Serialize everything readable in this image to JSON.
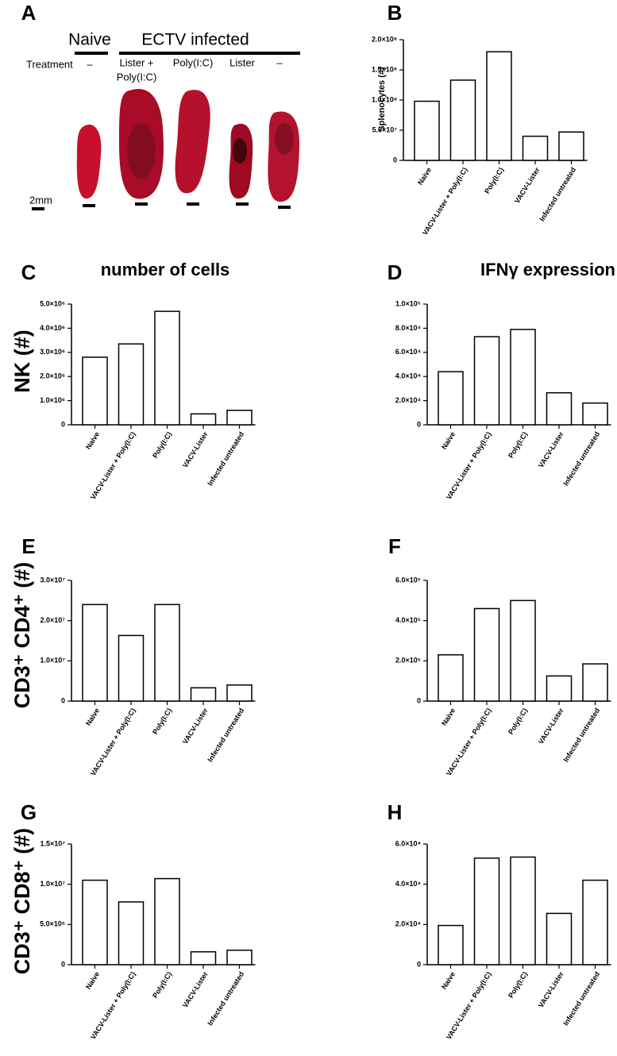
{
  "photo_panel": {
    "panel": "A",
    "groups": [
      "Naive",
      "ECTV infected"
    ],
    "treatment_label": "Treatment",
    "treatments": [
      [
        "–"
      ],
      [
        "Lister +",
        "Poly(I:C)"
      ],
      [
        "Poly(I:C)"
      ],
      [
        "Lister"
      ],
      [
        "–"
      ]
    ],
    "scale_label": "2mm"
  },
  "chart_data": [
    {
      "type": "bar",
      "panel": "B",
      "ylabel": "Splenocytes (#)",
      "categories": [
        "Naive",
        "VACV-Lister + Poly(I:C)",
        "Poly(I:C)",
        "VACV-Lister",
        "Infected untreated"
      ],
      "values": [
        98000000,
        133000000,
        180000000,
        40000000,
        47000000
      ],
      "color": "#ffffff",
      "ylim": [
        0,
        200000000
      ],
      "yticks": [
        0,
        {
          "value": 50000000,
          "label": "5.0×10⁷"
        },
        {
          "value": 100000000,
          "label": "1.0×10⁸"
        },
        {
          "value": 150000000,
          "label": "1.5×10⁸"
        },
        {
          "value": 200000000,
          "label": "2.0×10⁸"
        }
      ]
    },
    {
      "type": "bar",
      "panel": "C",
      "title": "number of cells",
      "ylabel": "NK (#)",
      "categories": [
        "Naive",
        "VACV-Lister + Poly(I:C)",
        "Poly(I:C)",
        "VACV-Lister",
        "Infected untreated"
      ],
      "values": [
        2800000,
        3350000,
        4700000,
        450000,
        600000
      ],
      "color": "#ffffff",
      "ylim": [
        0,
        5000000
      ],
      "yticks": [
        0,
        {
          "value": 1000000,
          "label": "1.0×10⁶"
        },
        {
          "value": 2000000,
          "label": "2.0×10⁶"
        },
        {
          "value": 3000000,
          "label": "3.0×10⁶"
        },
        {
          "value": 4000000,
          "label": "4.0×10⁶"
        },
        {
          "value": 5000000,
          "label": "5.0×10⁶"
        }
      ]
    },
    {
      "type": "bar",
      "panel": "D",
      "title": "IFNγ expression",
      "categories": [
        "Naive",
        "VACV-Lister + Poly(I:C)",
        "Poly(I:C)",
        "VACV-Lister",
        "Infected untreated"
      ],
      "values": [
        44000,
        73000,
        79000,
        26500,
        18000
      ],
      "color": "#ffffff",
      "ylim": [
        0,
        100000
      ],
      "yticks": [
        0,
        {
          "value": 20000,
          "label": "2.0×10⁴"
        },
        {
          "value": 40000,
          "label": "4.0×10⁴"
        },
        {
          "value": 60000,
          "label": "6.0×10⁴"
        },
        {
          "value": 80000,
          "label": "8.0×10⁴"
        },
        {
          "value": 100000,
          "label": "1.0×10⁵"
        }
      ]
    },
    {
      "type": "bar",
      "panel": "E",
      "ylabel": "CD3⁺ CD4⁺ (#)",
      "categories": [
        "Naive",
        "VACV-Lister + Poly(I:C)",
        "Poly(I:C)",
        "VACV-Lister",
        "Infected untreated"
      ],
      "values": [
        24000000,
        16300000,
        24000000,
        3300000,
        4000000
      ],
      "color": "#ffffff",
      "ylim": [
        0,
        30000000
      ],
      "yticks": [
        0,
        {
          "value": 10000000,
          "label": "1.0×10⁷"
        },
        {
          "value": 20000000,
          "label": "2.0×10⁷"
        },
        {
          "value": 30000000,
          "label": "3.0×10⁷"
        }
      ]
    },
    {
      "type": "bar",
      "panel": "F",
      "categories": [
        "Naive",
        "VACV-Lister + Poly(I:C)",
        "Poly(I:C)",
        "VACV-Lister",
        "Infected untreated"
      ],
      "values": [
        230000,
        460000,
        500000,
        125000,
        185000
      ],
      "color": "#ffffff",
      "ylim": [
        0,
        600000
      ],
      "yticks": [
        0,
        {
          "value": 200000,
          "label": "2.0×10⁵"
        },
        {
          "value": 400000,
          "label": "4.0×10⁵"
        },
        {
          "value": 600000,
          "label": "6.0×10⁵"
        }
      ]
    },
    {
      "type": "bar",
      "panel": "G",
      "ylabel": "CD3⁺ CD8⁺ (#)",
      "categories": [
        "Naive",
        "VACV-Lister + Poly(I:C)",
        "Poly(I:C)",
        "VACV-Lister",
        "Infected untreated"
      ],
      "values": [
        10500000,
        7800000,
        10700000,
        1600000,
        1800000
      ],
      "color": "#ffffff",
      "ylim": [
        0,
        15000000
      ],
      "yticks": [
        0,
        {
          "value": 5000000,
          "label": "5.0×10⁶"
        },
        {
          "value": 10000000,
          "label": "1.0×10⁷"
        },
        {
          "value": 15000000,
          "label": "1.5×10⁷"
        }
      ]
    },
    {
      "type": "bar",
      "panel": "H",
      "categories": [
        "Naive",
        "VACV-Lister + Poly(I:C)",
        "Poly(I:C)",
        "VACV-Lister",
        "Infected untreated"
      ],
      "values": [
        19500,
        53000,
        53500,
        25500,
        42000
      ],
      "color": "#ffffff",
      "ylim": [
        0,
        60000
      ],
      "yticks": [
        0,
        {
          "value": 20000,
          "label": "2.0×10⁴"
        },
        {
          "value": 40000,
          "label": "4.0×10⁴"
        },
        {
          "value": 60000,
          "label": "6.0×10⁴"
        }
      ]
    }
  ]
}
